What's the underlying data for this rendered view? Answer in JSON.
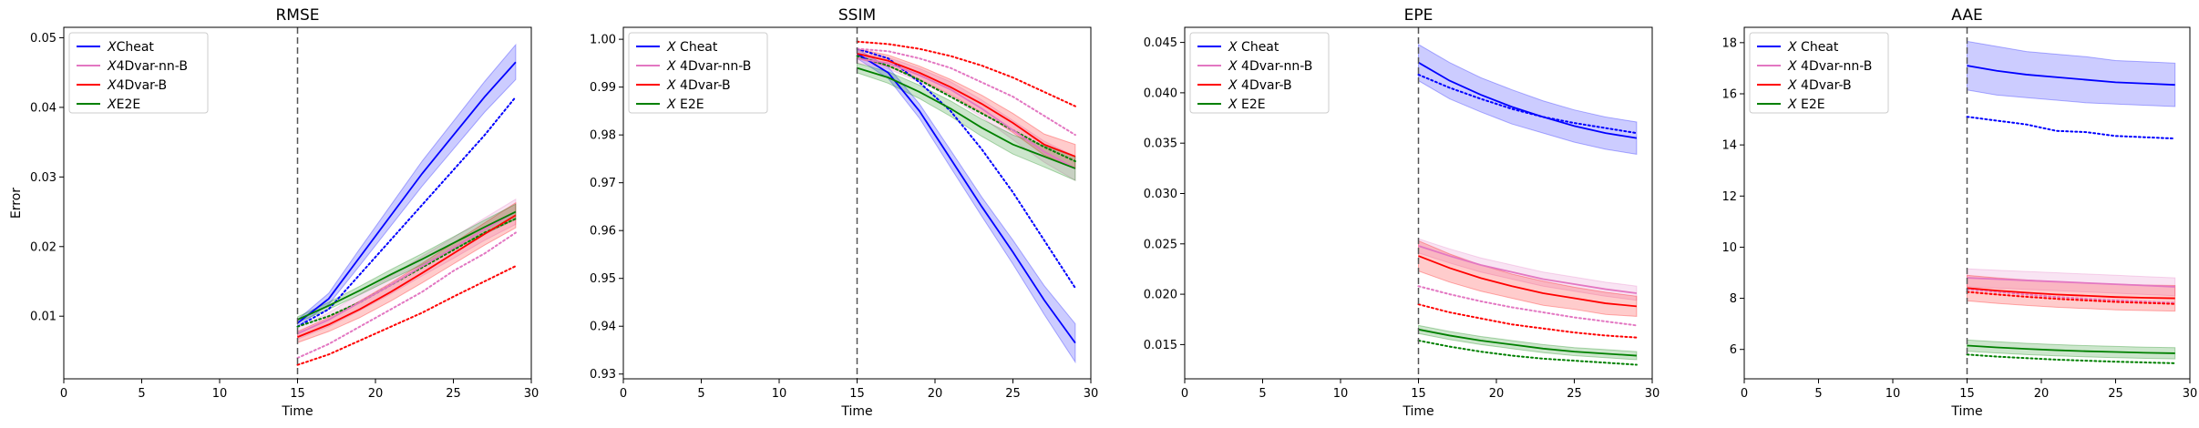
{
  "chart_data": [
    {
      "type": "line",
      "title": "RMSE",
      "xlabel": "Time",
      "ylabel": "Error",
      "xlim": [
        0,
        30
      ],
      "ylim": [
        0.001,
        0.0515
      ],
      "xticks": [
        0,
        5,
        10,
        15,
        20,
        25,
        30
      ],
      "yticks": [
        0.01,
        0.02,
        0.03,
        0.04,
        0.05
      ],
      "ytick_labels": [
        "0.01",
        "0.02",
        "0.03",
        "0.04",
        "0.05"
      ],
      "vline": 15,
      "legend_position": "top-left",
      "series": [
        {
          "name": "X Cheat",
          "color": "#0000ff",
          "x": [
            15,
            17,
            19,
            21,
            23,
            25,
            27,
            29
          ],
          "y": [
            0.009,
            0.0125,
            0.0185,
            0.0245,
            0.0305,
            0.036,
            0.0415,
            0.0465
          ],
          "band": [
            0.0005,
            0.0008,
            0.0012,
            0.0015,
            0.0018,
            0.002,
            0.0022,
            0.0025
          ],
          "dotted": [
            0.0085,
            0.011,
            0.016,
            0.021,
            0.026,
            0.031,
            0.036,
            0.0415
          ]
        },
        {
          "name": "X 4Dvar-nn-B",
          "color": "#e377c2",
          "x": [
            15,
            17,
            19,
            21,
            23,
            25,
            27,
            29
          ],
          "y": [
            0.0075,
            0.0095,
            0.012,
            0.0145,
            0.0172,
            0.0198,
            0.0225,
            0.025
          ],
          "band": [
            0.0008,
            0.001,
            0.0012,
            0.0013,
            0.0014,
            0.0015,
            0.0016,
            0.0018
          ],
          "dotted": [
            0.004,
            0.006,
            0.0085,
            0.011,
            0.0135,
            0.0165,
            0.019,
            0.022
          ]
        },
        {
          "name": "X 4Dvar-B",
          "color": "#ff0000",
          "x": [
            15,
            17,
            19,
            21,
            23,
            25,
            27,
            29
          ],
          "y": [
            0.007,
            0.0088,
            0.011,
            0.0135,
            0.0162,
            0.019,
            0.0218,
            0.0245
          ],
          "band": [
            0.0008,
            0.001,
            0.0012,
            0.0013,
            0.0014,
            0.0015,
            0.0016,
            0.0018
          ],
          "dotted": [
            0.003,
            0.0045,
            0.0065,
            0.0085,
            0.0105,
            0.0128,
            0.015,
            0.0172
          ]
        },
        {
          "name": "X E2E",
          "color": "#008000",
          "x": [
            15,
            17,
            19,
            21,
            23,
            25,
            27,
            29
          ],
          "y": [
            0.0095,
            0.0115,
            0.0137,
            0.016,
            0.0182,
            0.0205,
            0.0228,
            0.025
          ],
          "band": [
            0.0004,
            0.0005,
            0.0006,
            0.0007,
            0.0008,
            0.0009,
            0.001,
            0.0011
          ],
          "dotted": [
            0.0085,
            0.01,
            0.012,
            0.0145,
            0.017,
            0.0195,
            0.022,
            0.024
          ]
        }
      ]
    },
    {
      "type": "line",
      "title": "SSIM",
      "xlabel": "Time",
      "ylabel": "",
      "xlim": [
        0,
        30
      ],
      "ylim": [
        0.929,
        1.0025
      ],
      "xticks": [
        0,
        5,
        10,
        15,
        20,
        25,
        30
      ],
      "yticks": [
        0.93,
        0.94,
        0.95,
        0.96,
        0.97,
        0.98,
        0.99,
        1.0
      ],
      "ytick_labels": [
        "0.93",
        "0.94",
        "0.95",
        "0.96",
        "0.97",
        "0.98",
        "0.99",
        "1.00"
      ],
      "vline": 15,
      "legend_position": "top-left",
      "series": [
        {
          "name": "X Cheat",
          "color": "#0000ff",
          "x": [
            15,
            17,
            19,
            21,
            23,
            25,
            27,
            29
          ],
          "y": [
            0.997,
            0.993,
            0.985,
            0.975,
            0.965,
            0.9555,
            0.9455,
            0.9365
          ],
          "band": [
            0.001,
            0.0012,
            0.0015,
            0.0018,
            0.002,
            0.0025,
            0.003,
            0.004
          ],
          "dotted": [
            0.998,
            0.996,
            0.991,
            0.985,
            0.977,
            0.968,
            0.958,
            0.948
          ]
        },
        {
          "name": "X 4Dvar-nn-B",
          "color": "#e377c2",
          "x": [
            15,
            17,
            19,
            21,
            23,
            25,
            27,
            29
          ],
          "y": [
            0.996,
            0.995,
            0.9925,
            0.9895,
            0.9855,
            0.981,
            0.9765,
            0.973
          ],
          "band": [
            0.001,
            0.0012,
            0.0014,
            0.0016,
            0.0018,
            0.002,
            0.0022,
            0.0025
          ],
          "dotted": [
            0.998,
            0.9975,
            0.996,
            0.994,
            0.991,
            0.988,
            0.984,
            0.98
          ]
        },
        {
          "name": "X 4Dvar-B",
          "color": "#ff0000",
          "x": [
            15,
            17,
            19,
            21,
            23,
            25,
            27,
            29
          ],
          "y": [
            0.997,
            0.9955,
            0.993,
            0.99,
            0.9865,
            0.9825,
            0.978,
            0.9755
          ],
          "band": [
            0.001,
            0.0012,
            0.0014,
            0.0016,
            0.0018,
            0.002,
            0.0022,
            0.0025
          ],
          "dotted": [
            0.9995,
            0.999,
            0.998,
            0.9965,
            0.9945,
            0.992,
            0.989,
            0.986
          ]
        },
        {
          "name": "X E2E",
          "color": "#008000",
          "x": [
            15,
            17,
            19,
            21,
            23,
            25,
            27,
            29
          ],
          "y": [
            0.994,
            0.992,
            0.989,
            0.9855,
            0.9815,
            0.978,
            0.9755,
            0.973
          ],
          "band": [
            0.001,
            0.0012,
            0.0014,
            0.0016,
            0.0018,
            0.002,
            0.0022,
            0.0025
          ],
          "dotted": [
            0.9965,
            0.9945,
            0.9915,
            0.988,
            0.9845,
            0.981,
            0.9775,
            0.9745
          ]
        }
      ]
    },
    {
      "type": "line",
      "title": "EPE",
      "xlabel": "Time",
      "ylabel": "",
      "xlim": [
        0,
        30
      ],
      "ylim": [
        0.0116,
        0.0465
      ],
      "xticks": [
        0,
        5,
        10,
        15,
        20,
        25,
        30
      ],
      "yticks": [
        0.015,
        0.02,
        0.025,
        0.03,
        0.035,
        0.04,
        0.045
      ],
      "ytick_labels": [
        "0.015",
        "0.020",
        "0.025",
        "0.030",
        "0.035",
        "0.040",
        "0.045"
      ],
      "vline": 15,
      "legend_position": "top-left",
      "series": [
        {
          "name": "X Cheat",
          "color": "#0000ff",
          "x": [
            15,
            17,
            19,
            21,
            23,
            25,
            27,
            29
          ],
          "y": [
            0.043,
            0.0412,
            0.0398,
            0.0386,
            0.0376,
            0.0367,
            0.036,
            0.0355
          ],
          "band": [
            0.0018,
            0.0018,
            0.0017,
            0.0017,
            0.0016,
            0.0016,
            0.0016,
            0.0016
          ],
          "dotted": [
            0.0418,
            0.0405,
            0.0394,
            0.0384,
            0.0376,
            0.037,
            0.0365,
            0.036
          ]
        },
        {
          "name": "X 4Dvar-nn-B",
          "color": "#e377c2",
          "x": [
            15,
            17,
            19,
            21,
            23,
            25,
            27,
            29
          ],
          "y": [
            0.0248,
            0.0238,
            0.0229,
            0.0222,
            0.0215,
            0.021,
            0.0205,
            0.0201
          ],
          "band": [
            0.0007,
            0.0007,
            0.0007,
            0.0007,
            0.0007,
            0.0007,
            0.0007,
            0.0007
          ],
          "dotted": [
            0.0208,
            0.02,
            0.0193,
            0.0187,
            0.0182,
            0.0177,
            0.0173,
            0.0169
          ]
        },
        {
          "name": "X 4Dvar-B",
          "color": "#ff0000",
          "x": [
            15,
            17,
            19,
            21,
            23,
            25,
            27,
            29
          ],
          "y": [
            0.0238,
            0.0226,
            0.0216,
            0.0208,
            0.0201,
            0.0196,
            0.0191,
            0.0188
          ],
          "band": [
            0.0015,
            0.0014,
            0.0013,
            0.0012,
            0.0012,
            0.0011,
            0.0011,
            0.001
          ],
          "dotted": [
            0.019,
            0.0182,
            0.0176,
            0.017,
            0.0166,
            0.0162,
            0.0159,
            0.0157
          ]
        },
        {
          "name": "X E2E",
          "color": "#008000",
          "x": [
            15,
            17,
            19,
            21,
            23,
            25,
            27,
            29
          ],
          "y": [
            0.0165,
            0.0159,
            0.0154,
            0.015,
            0.0146,
            0.0143,
            0.0141,
            0.0139
          ],
          "band": [
            0.0004,
            0.0004,
            0.0004,
            0.0004,
            0.0004,
            0.0004,
            0.0004,
            0.0004
          ],
          "dotted": [
            0.0154,
            0.0148,
            0.0143,
            0.0139,
            0.0136,
            0.0134,
            0.0132,
            0.013
          ]
        }
      ]
    },
    {
      "type": "line",
      "title": "AAE",
      "xlabel": "Time",
      "ylabel": "",
      "xlim": [
        0,
        30
      ],
      "ylim": [
        4.85,
        18.6
      ],
      "xticks": [
        0,
        5,
        10,
        15,
        20,
        25,
        30
      ],
      "yticks": [
        6,
        8,
        10,
        12,
        14,
        16,
        18
      ],
      "ytick_labels": [
        "6",
        "8",
        "10",
        "12",
        "14",
        "16",
        "18"
      ],
      "vline": 15,
      "legend_position": "top-left",
      "series": [
        {
          "name": "X Cheat",
          "color": "#0000ff",
          "x": [
            15,
            17,
            19,
            21,
            23,
            25,
            27,
            29
          ],
          "y": [
            17.1,
            16.9,
            16.75,
            16.65,
            16.55,
            16.45,
            16.4,
            16.35
          ],
          "band": [
            0.95,
            0.95,
            0.9,
            0.9,
            0.9,
            0.85,
            0.85,
            0.85
          ],
          "dotted": [
            15.1,
            14.95,
            14.8,
            14.55,
            14.5,
            14.35,
            14.3,
            14.25
          ]
        },
        {
          "name": "X 4Dvar-nn-B",
          "color": "#e377c2",
          "x": [
            15,
            17,
            19,
            21,
            23,
            25,
            27,
            29
          ],
          "y": [
            8.8,
            8.75,
            8.7,
            8.65,
            8.6,
            8.55,
            8.5,
            8.45
          ],
          "band": [
            0.35,
            0.35,
            0.35,
            0.35,
            0.35,
            0.35,
            0.35,
            0.35
          ],
          "dotted": [
            8.35,
            8.25,
            8.15,
            8.05,
            7.98,
            7.92,
            7.87,
            7.82
          ]
        },
        {
          "name": "X 4Dvar-B",
          "color": "#ff0000",
          "x": [
            15,
            17,
            19,
            21,
            23,
            25,
            27,
            29
          ],
          "y": [
            8.4,
            8.3,
            8.22,
            8.15,
            8.1,
            8.05,
            8.02,
            8.0
          ],
          "band": [
            0.5,
            0.5,
            0.5,
            0.5,
            0.5,
            0.5,
            0.5,
            0.5
          ],
          "dotted": [
            8.25,
            8.15,
            8.06,
            7.98,
            7.92,
            7.86,
            7.82,
            7.78
          ]
        },
        {
          "name": "X E2E",
          "color": "#008000",
          "x": [
            15,
            17,
            19,
            21,
            23,
            25,
            27,
            29
          ],
          "y": [
            6.15,
            6.08,
            6.02,
            5.97,
            5.93,
            5.9,
            5.87,
            5.85
          ],
          "band": [
            0.22,
            0.22,
            0.22,
            0.22,
            0.22,
            0.22,
            0.22,
            0.22
          ],
          "dotted": [
            5.8,
            5.72,
            5.66,
            5.6,
            5.56,
            5.52,
            5.49,
            5.46
          ]
        }
      ]
    }
  ],
  "legend_labels": [
    [
      [
        "X",
        "Cheat"
      ],
      [
        "X",
        "4Dvar-nn-B"
      ],
      [
        "X",
        "4Dvar-B"
      ],
      [
        "X",
        "E2E"
      ]
    ],
    [
      [
        "X",
        " Cheat"
      ],
      [
        "X",
        " 4Dvar-nn-B"
      ],
      [
        "X",
        " 4Dvar-B"
      ],
      [
        "X",
        " E2E"
      ]
    ],
    [
      [
        "X",
        " Cheat"
      ],
      [
        "X",
        " 4Dvar-nn-B"
      ],
      [
        "X",
        " 4Dvar-B"
      ],
      [
        "X",
        " E2E"
      ]
    ],
    [
      [
        "X",
        " Cheat"
      ],
      [
        "X",
        " 4Dvar-nn-B"
      ],
      [
        "X",
        " 4Dvar-B"
      ],
      [
        "X",
        " E2E"
      ]
    ]
  ]
}
